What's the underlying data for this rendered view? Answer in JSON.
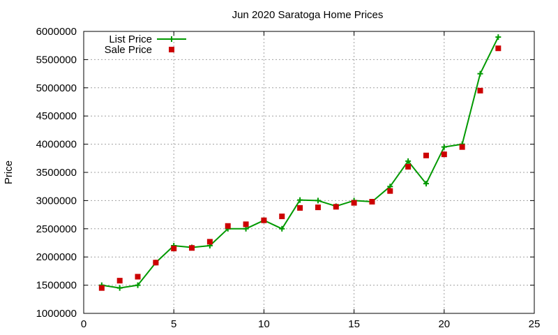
{
  "chart_data": {
    "type": "line",
    "title": "Jun 2020 Saratoga Home Prices",
    "xlabel": "",
    "ylabel": "Price",
    "xlim": [
      0,
      25
    ],
    "ylim": [
      1000000,
      6000000
    ],
    "x_ticks": [
      0,
      5,
      10,
      15,
      20,
      25
    ],
    "x_tick_labels": [
      "0",
      "5",
      "10",
      "15",
      "20",
      "25"
    ],
    "y_ticks": [
      1000000,
      1500000,
      2000000,
      2500000,
      3000000,
      3500000,
      4000000,
      4500000,
      5000000,
      5500000,
      6000000
    ],
    "y_tick_labels": [
      "1000000",
      "1500000",
      "2000000",
      "2500000",
      "3000000",
      "3500000",
      "4000000",
      "4500000",
      "5000000",
      "5500000",
      "6000000"
    ],
    "grid": true,
    "legend_position": "top-left",
    "series": [
      {
        "name": "List Price",
        "kind": "line+points",
        "marker": "plus",
        "color": "#009900",
        "x": [
          1,
          2,
          3,
          4,
          5,
          6,
          7,
          8,
          9,
          10,
          11,
          12,
          13,
          14,
          15,
          16,
          17,
          18,
          19,
          20,
          21,
          22,
          23
        ],
        "values": [
          1500000,
          1450000,
          1500000,
          1900000,
          2200000,
          2170000,
          2200000,
          2500000,
          2500000,
          2650000,
          2500000,
          3010000,
          3000000,
          2900000,
          3000000,
          2980000,
          3250000,
          3700000,
          3300000,
          3950000,
          4000000,
          5250000,
          5900000
        ]
      },
      {
        "name": "Sale Price",
        "kind": "points",
        "marker": "square",
        "color": "#cc0000",
        "x": [
          1,
          2,
          3,
          4,
          5,
          6,
          7,
          8,
          9,
          10,
          11,
          12,
          13,
          14,
          15,
          16,
          17,
          18,
          19,
          20,
          21,
          22,
          23
        ],
        "values": [
          1450000,
          1580000,
          1650000,
          1900000,
          2150000,
          2160000,
          2270000,
          2550000,
          2580000,
          2650000,
          2720000,
          2870000,
          2880000,
          2890000,
          2960000,
          2980000,
          3170000,
          3600000,
          3800000,
          3820000,
          3950000,
          4950000,
          5700000
        ]
      }
    ]
  }
}
